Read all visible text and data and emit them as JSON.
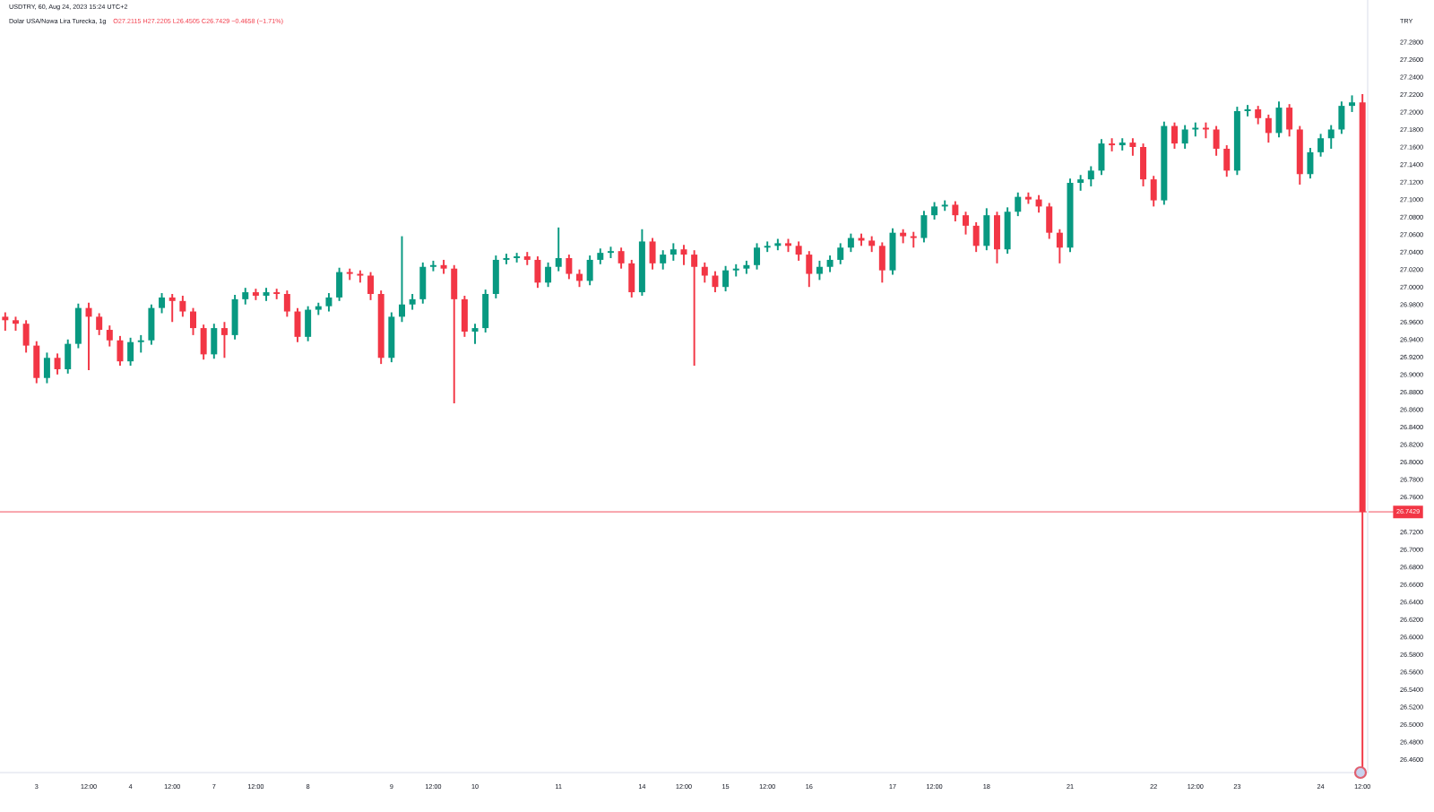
{
  "chart_data": {
    "type": "candlestick",
    "title": "Dolar USA/Nowa Lira Turecka, 1g",
    "subtitle": "USDTRY, 60, Aug 24, 2023 15:24 UTC+2",
    "ylabel": "TRY",
    "annotations": [
      "O27.2115 H27.2205 L26.4505 C26.7429 −0.4658 (−1.71%)"
    ],
    "categories": [
      null,
      null,
      null,
      "3",
      null,
      null,
      null,
      null,
      "12:00",
      null,
      null,
      null,
      "4",
      null,
      null,
      null,
      "12:00",
      null,
      null,
      null,
      "7",
      null,
      null,
      null,
      "12:00",
      null,
      null,
      null,
      null,
      "8",
      null,
      null,
      null,
      null,
      null,
      null,
      null,
      "9",
      null,
      null,
      null,
      "12:00",
      null,
      null,
      null,
      "10",
      null,
      null,
      null,
      null,
      null,
      null,
      null,
      "11",
      null,
      null,
      null,
      null,
      null,
      null,
      null,
      "14",
      null,
      null,
      null,
      "12:00",
      null,
      null,
      null,
      "15",
      null,
      null,
      null,
      "12:00",
      null,
      null,
      null,
      "16",
      null,
      null,
      null,
      null,
      null,
      null,
      null,
      "17",
      null,
      null,
      null,
      "12:00",
      null,
      null,
      null,
      null,
      "18",
      null,
      null,
      null,
      null,
      null,
      null,
      null,
      "21",
      null,
      null,
      null,
      null,
      null,
      null,
      null,
      "22",
      null,
      null,
      null,
      "12:00",
      null,
      null,
      null,
      "23",
      null,
      null,
      null,
      null,
      null,
      null,
      null,
      "24",
      null,
      null,
      null,
      "12:00"
    ],
    "ohlc": [
      [
        26.966,
        26.971,
        26.95,
        26.962
      ],
      [
        26.962,
        26.966,
        26.95,
        26.958
      ],
      [
        26.958,
        26.962,
        26.925,
        26.933
      ],
      [
        26.933,
        26.938,
        26.89,
        26.896
      ],
      [
        26.896,
        26.925,
        26.89,
        26.919
      ],
      [
        26.919,
        26.924,
        26.9,
        26.906
      ],
      [
        26.906,
        26.94,
        26.901,
        26.935
      ],
      [
        26.935,
        26.981,
        26.93,
        26.976
      ],
      [
        26.976,
        26.982,
        26.905,
        26.966
      ],
      [
        26.966,
        26.97,
        26.945,
        26.951
      ],
      [
        26.951,
        26.956,
        26.932,
        26.939
      ],
      [
        26.939,
        26.944,
        26.91,
        26.915
      ],
      [
        26.915,
        26.942,
        26.91,
        26.937
      ],
      [
        26.937,
        26.945,
        26.925,
        26.939
      ],
      [
        26.939,
        26.98,
        26.934,
        26.976
      ],
      [
        26.976,
        26.993,
        26.97,
        26.988
      ],
      [
        26.988,
        26.992,
        26.96,
        26.984
      ],
      [
        26.984,
        26.99,
        26.966,
        26.972
      ],
      [
        26.972,
        26.976,
        26.945,
        26.953
      ],
      [
        26.953,
        26.957,
        26.917,
        26.923
      ],
      [
        26.923,
        26.958,
        26.918,
        26.953
      ],
      [
        26.953,
        26.96,
        26.919,
        26.945
      ],
      [
        26.945,
        26.991,
        26.94,
        26.986
      ],
      [
        26.986,
        26.999,
        26.98,
        26.994
      ],
      [
        26.994,
        26.998,
        26.985,
        26.99
      ],
      [
        26.99,
        26.999,
        26.984,
        26.994
      ],
      [
        26.994,
        26.998,
        26.986,
        26.992
      ],
      [
        26.992,
        26.996,
        26.966,
        26.972
      ],
      [
        26.972,
        26.976,
        26.937,
        26.943
      ],
      [
        26.943,
        26.978,
        26.938,
        26.974
      ],
      [
        26.974,
        26.982,
        26.968,
        26.978
      ],
      [
        26.978,
        26.993,
        26.972,
        26.988
      ],
      [
        26.988,
        27.022,
        26.984,
        27.017
      ],
      [
        27.017,
        27.021,
        27.008,
        27.015
      ],
      [
        27.015,
        27.019,
        27.005,
        27.013
      ],
      [
        27.013,
        27.017,
        26.985,
        26.992
      ],
      [
        26.992,
        26.996,
        26.912,
        26.919
      ],
      [
        26.919,
        26.971,
        26.914,
        26.966
      ],
      [
        26.966,
        27.058,
        26.96,
        26.98
      ],
      [
        26.98,
        26.992,
        26.974,
        26.986
      ],
      [
        26.986,
        27.028,
        26.981,
        27.023
      ],
      [
        27.023,
        27.03,
        27.018,
        27.025
      ],
      [
        27.025,
        27.031,
        27.015,
        27.021
      ],
      [
        27.021,
        27.025,
        26.867,
        26.986
      ],
      [
        26.986,
        26.99,
        26.943,
        26.949
      ],
      [
        26.949,
        26.958,
        26.935,
        26.953
      ],
      [
        26.953,
        26.997,
        26.948,
        26.992
      ],
      [
        26.992,
        27.036,
        26.987,
        27.031
      ],
      [
        27.031,
        27.038,
        27.026,
        27.033
      ],
      [
        27.033,
        27.039,
        27.028,
        27.035
      ],
      [
        27.035,
        27.04,
        27.025,
        27.031
      ],
      [
        27.031,
        27.035,
        26.999,
        27.005
      ],
      [
        27.005,
        27.028,
        27.0,
        27.023
      ],
      [
        27.023,
        27.068,
        27.018,
        27.033
      ],
      [
        27.033,
        27.037,
        27.009,
        27.015
      ],
      [
        27.015,
        27.02,
        27.0,
        27.007
      ],
      [
        27.007,
        27.036,
        27.002,
        27.031
      ],
      [
        27.031,
        27.044,
        27.026,
        27.039
      ],
      [
        27.039,
        27.046,
        27.033,
        27.041
      ],
      [
        27.041,
        27.045,
        27.021,
        27.027
      ],
      [
        27.027,
        27.031,
        26.988,
        26.994
      ],
      [
        26.994,
        27.066,
        26.99,
        27.052
      ],
      [
        27.052,
        27.056,
        27.02,
        27.027
      ],
      [
        27.027,
        27.042,
        27.02,
        27.037
      ],
      [
        27.037,
        27.05,
        27.03,
        27.043
      ],
      [
        27.043,
        27.048,
        27.025,
        27.037
      ],
      [
        27.037,
        27.042,
        26.91,
        27.023
      ],
      [
        27.023,
        27.028,
        27.005,
        27.013
      ],
      [
        27.013,
        27.018,
        26.994,
        27.0
      ],
      [
        27.0,
        27.024,
        26.995,
        27.019
      ],
      [
        27.019,
        27.026,
        27.012,
        27.021
      ],
      [
        27.021,
        27.03,
        27.015,
        27.025
      ],
      [
        27.025,
        27.05,
        27.02,
        27.045
      ],
      [
        27.045,
        27.052,
        27.04,
        27.047
      ],
      [
        27.047,
        27.055,
        27.042,
        27.05
      ],
      [
        27.05,
        27.055,
        27.04,
        27.047
      ],
      [
        27.047,
        27.052,
        27.03,
        27.037
      ],
      [
        27.037,
        27.041,
        27.0,
        27.015
      ],
      [
        27.015,
        27.03,
        27.008,
        27.023
      ],
      [
        27.023,
        27.036,
        27.017,
        27.031
      ],
      [
        27.031,
        27.05,
        27.026,
        27.045
      ],
      [
        27.045,
        27.061,
        27.04,
        27.056
      ],
      [
        27.056,
        27.061,
        27.047,
        27.053
      ],
      [
        27.053,
        27.058,
        27.04,
        27.047
      ],
      [
        27.047,
        27.051,
        27.005,
        27.019
      ],
      [
        27.019,
        27.067,
        27.014,
        27.062
      ],
      [
        27.062,
        27.066,
        27.05,
        27.058
      ],
      [
        27.058,
        27.063,
        27.045,
        27.056
      ],
      [
        27.056,
        27.087,
        27.051,
        27.082
      ],
      [
        27.082,
        27.097,
        27.077,
        27.092
      ],
      [
        27.092,
        27.099,
        27.087,
        27.094
      ],
      [
        27.094,
        27.098,
        27.075,
        27.082
      ],
      [
        27.082,
        27.086,
        27.06,
        27.07
      ],
      [
        27.07,
        27.074,
        27.04,
        27.047
      ],
      [
        27.047,
        27.09,
        27.042,
        27.082
      ],
      [
        27.082,
        27.086,
        27.027,
        27.043
      ],
      [
        27.043,
        27.091,
        27.038,
        27.086
      ],
      [
        27.086,
        27.108,
        27.081,
        27.103
      ],
      [
        27.103,
        27.108,
        27.095,
        27.1
      ],
      [
        27.1,
        27.105,
        27.085,
        27.092
      ],
      [
        27.092,
        27.096,
        27.055,
        27.062
      ],
      [
        27.062,
        27.066,
        27.027,
        27.045
      ],
      [
        27.045,
        27.124,
        27.04,
        27.119
      ],
      [
        27.119,
        27.128,
        27.11,
        27.123
      ],
      [
        27.123,
        27.138,
        27.115,
        27.133
      ],
      [
        27.133,
        27.169,
        27.128,
        27.164
      ],
      [
        27.164,
        27.17,
        27.155,
        27.162
      ],
      [
        27.162,
        27.17,
        27.156,
        27.165
      ],
      [
        27.165,
        27.17,
        27.15,
        27.16
      ],
      [
        27.16,
        27.164,
        27.115,
        27.123
      ],
      [
        27.123,
        27.127,
        27.092,
        27.099
      ],
      [
        27.099,
        27.189,
        27.094,
        27.184
      ],
      [
        27.184,
        27.188,
        27.158,
        27.164
      ],
      [
        27.164,
        27.185,
        27.158,
        27.18
      ],
      [
        27.18,
        27.188,
        27.172,
        27.182
      ],
      [
        27.182,
        27.188,
        27.17,
        27.18
      ],
      [
        27.18,
        27.184,
        27.15,
        27.158
      ],
      [
        27.158,
        27.162,
        27.126,
        27.133
      ],
      [
        27.133,
        27.206,
        27.128,
        27.201
      ],
      [
        27.201,
        27.208,
        27.195,
        27.203
      ],
      [
        27.203,
        27.207,
        27.186,
        27.193
      ],
      [
        27.193,
        27.197,
        27.165,
        27.176
      ],
      [
        27.176,
        27.212,
        27.171,
        27.205
      ],
      [
        27.205,
        27.209,
        27.172,
        27.18
      ],
      [
        27.18,
        27.184,
        27.117,
        27.129
      ],
      [
        27.129,
        27.159,
        27.124,
        27.154
      ],
      [
        27.154,
        27.175,
        27.149,
        27.17
      ],
      [
        27.17,
        27.185,
        27.158,
        27.18
      ],
      [
        27.18,
        27.212,
        27.175,
        27.207
      ],
      [
        27.207,
        27.219,
        27.2,
        27.211
      ],
      [
        27.211,
        27.2205,
        26.4505,
        26.7429
      ]
    ],
    "colors": [
      "#f23645",
      "#f23645",
      "#f23645",
      "#f23645",
      "#089981",
      "#f23645",
      "#089981",
      "#089981",
      "#f23645",
      "#f23645",
      "#f23645",
      "#f23645",
      "#089981",
      "#089981",
      "#089981",
      "#089981",
      "#f23645",
      "#f23645",
      "#f23645",
      "#f23645",
      "#089981",
      "#f23645",
      "#089981",
      "#089981",
      "#f23645",
      "#089981",
      "#f23645",
      "#f23645",
      "#f23645",
      "#089981",
      "#089981",
      "#089981",
      "#089981",
      "#f23645",
      "#f23645",
      "#f23645",
      "#f23645",
      "#089981",
      "#089981",
      "#089981",
      "#089981",
      "#089981",
      "#f23645",
      "#f23645",
      "#f23645",
      "#089981",
      "#089981",
      "#089981",
      "#089981",
      "#089981",
      "#f23645",
      "#f23645",
      "#089981",
      "#089981",
      "#f23645",
      "#f23645",
      "#089981",
      "#089981",
      "#089981",
      "#f23645",
      "#f23645",
      "#089981",
      "#f23645",
      "#089981",
      "#089981",
      "#f23645",
      "#f23645",
      "#f23645",
      "#f23645",
      "#089981",
      "#089981",
      "#089981",
      "#089981",
      "#089981",
      "#089981",
      "#f23645",
      "#f23645",
      "#f23645",
      "#089981",
      "#089981",
      "#089981",
      "#089981",
      "#f23645",
      "#f23645",
      "#f23645",
      "#089981",
      "#f23645",
      "#f23645",
      "#089981",
      "#089981",
      "#089981",
      "#f23645",
      "#f23645",
      "#f23645",
      "#089981",
      "#f23645",
      "#089981",
      "#089981",
      "#f23645",
      "#f23645",
      "#f23645",
      "#f23645",
      "#089981",
      "#089981",
      "#089981",
      "#089981",
      "#f23645",
      "#089981",
      "#f23645",
      "#f23645",
      "#f23645",
      "#089981",
      "#f23645",
      "#089981",
      "#089981",
      "#f23645",
      "#f23645",
      "#f23645",
      "#089981",
      "#089981",
      "#f23645",
      "#f23645",
      "#089981",
      "#f23645",
      "#f23645",
      "#089981",
      "#089981",
      "#089981",
      "#089981",
      "#089981",
      "#f23645"
    ],
    "ylim": [
      26.445,
      27.328
    ],
    "yticks": [
      {
        "value": 27.28,
        "label": "27.2800"
      },
      {
        "value": 27.26,
        "label": "27.2600"
      },
      {
        "value": 27.24,
        "label": "27.2400"
      },
      {
        "value": 27.22,
        "label": "27.2200"
      },
      {
        "value": 27.2,
        "label": "27.2000"
      },
      {
        "value": 27.18,
        "label": "27.1800"
      },
      {
        "value": 27.16,
        "label": "27.1600"
      },
      {
        "value": 27.14,
        "label": "27.1400"
      },
      {
        "value": 27.12,
        "label": "27.1200"
      },
      {
        "value": 27.1,
        "label": "27.1000"
      },
      {
        "value": 27.08,
        "label": "27.0800"
      },
      {
        "value": 27.06,
        "label": "27.0600"
      },
      {
        "value": 27.04,
        "label": "27.0400"
      },
      {
        "value": 27.02,
        "label": "27.0200"
      },
      {
        "value": 27.0,
        "label": "27.0000"
      },
      {
        "value": 26.98,
        "label": "26.9800"
      },
      {
        "value": 26.96,
        "label": "26.9600"
      },
      {
        "value": 26.94,
        "label": "26.9400"
      },
      {
        "value": 26.92,
        "label": "26.9200"
      },
      {
        "value": 26.9,
        "label": "26.9000"
      },
      {
        "value": 26.88,
        "label": "26.8800"
      },
      {
        "value": 26.86,
        "label": "26.8600"
      },
      {
        "value": 26.84,
        "label": "26.8400"
      },
      {
        "value": 26.82,
        "label": "26.8200"
      },
      {
        "value": 26.8,
        "label": "26.8000"
      },
      {
        "value": 26.78,
        "label": "26.7800"
      },
      {
        "value": 26.76,
        "label": "26.7600"
      },
      {
        "value": 26.72,
        "label": "26.7200"
      },
      {
        "value": 26.7,
        "label": "26.7000"
      },
      {
        "value": 26.68,
        "label": "26.6800"
      },
      {
        "value": 26.66,
        "label": "26.6600"
      },
      {
        "value": 26.64,
        "label": "26.6400"
      },
      {
        "value": 26.62,
        "label": "26.6200"
      },
      {
        "value": 26.6,
        "label": "26.6000"
      },
      {
        "value": 26.58,
        "label": "26.5800"
      },
      {
        "value": 26.56,
        "label": "26.5600"
      },
      {
        "value": 26.54,
        "label": "26.5400"
      },
      {
        "value": 26.52,
        "label": "26.5200"
      },
      {
        "value": 26.5,
        "label": "26.5000"
      },
      {
        "value": 26.48,
        "label": "26.4800"
      },
      {
        "value": 26.46,
        "label": "26.4600"
      }
    ],
    "ref_lines": [
      {
        "axis": "y",
        "value": 26.7429,
        "label": "26.7429",
        "color": "#f23645",
        "line_style": "solid"
      }
    ]
  }
}
